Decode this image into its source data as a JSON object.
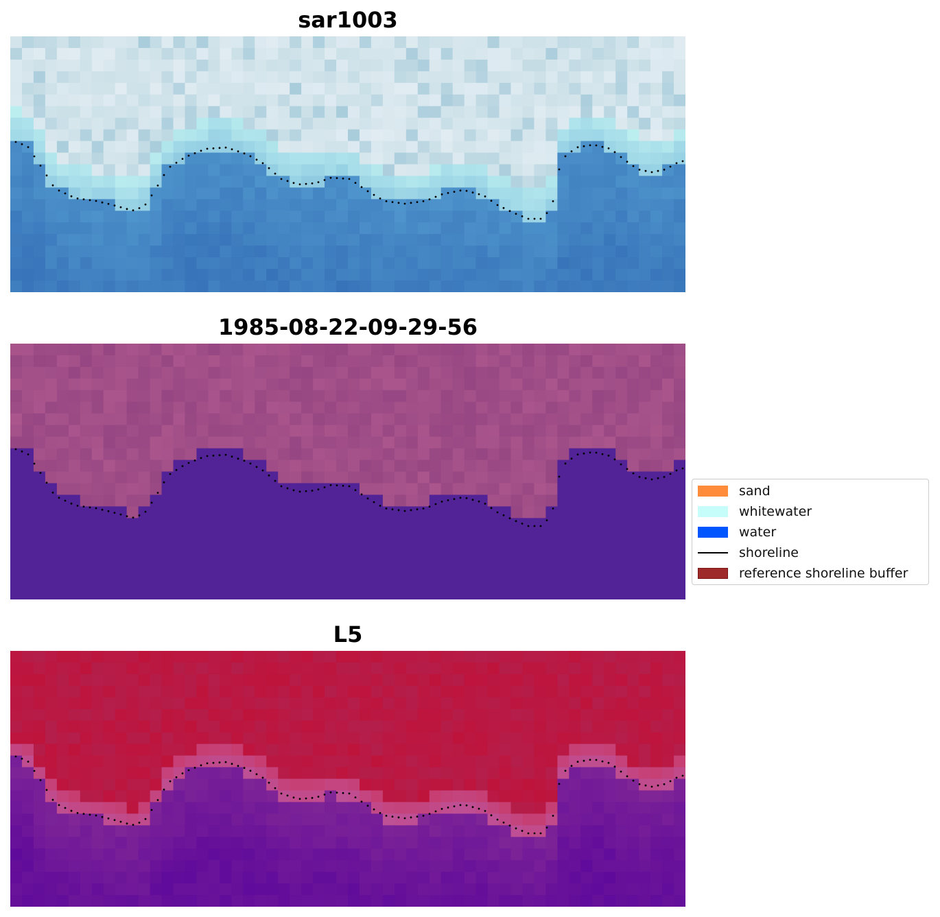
{
  "panels": [
    {
      "title": "sar1003",
      "scheme": "sar"
    },
    {
      "title": "1985-08-22-09-29-56",
      "scheme": "classified"
    },
    {
      "title": "L5",
      "scheme": "l5"
    }
  ],
  "legend": {
    "items": [
      {
        "label": "sand",
        "kind": "patch",
        "color": "#ff8c3a"
      },
      {
        "label": "whitewater",
        "kind": "patch",
        "color": "#c6fdfb"
      },
      {
        "label": "water",
        "kind": "patch",
        "color": "#0055ff"
      },
      {
        "label": "shoreline",
        "kind": "line",
        "color": "#000000"
      },
      {
        "label": "reference shoreline buffer",
        "kind": "patch",
        "color": "#9e2a2a"
      }
    ]
  }
}
